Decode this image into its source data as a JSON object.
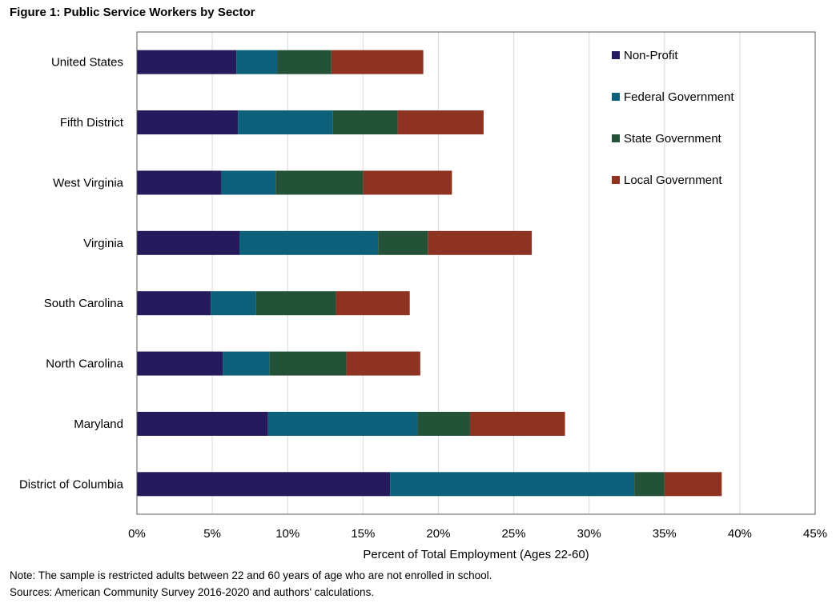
{
  "figure": {
    "title": "Figure 1: Public Service Workers by Sector",
    "note": "Note: The sample is restricted adults between 22 and 60  years of age who are not enrolled in school.",
    "sources": "Sources: American Community Survey 2016-2020 and authors' calculations."
  },
  "chart_data": {
    "type": "bar",
    "orientation": "horizontal",
    "stacked": true,
    "categories": [
      "United States",
      "Fifth District",
      "West Virginia",
      "Virginia",
      "South Carolina",
      "North Carolina",
      "Maryland",
      "District of Columbia"
    ],
    "series": [
      {
        "name": "Non-Profit",
        "color": "#241a5c",
        "values": [
          6.6,
          6.7,
          5.6,
          6.8,
          4.9,
          5.7,
          8.7,
          16.8
        ]
      },
      {
        "name": "Federal Government",
        "color": "#0d6079",
        "values": [
          2.7,
          6.3,
          3.6,
          9.2,
          3.0,
          3.1,
          9.9,
          16.2
        ]
      },
      {
        "name": "State Government",
        "color": "#235239",
        "values": [
          3.6,
          4.3,
          5.8,
          3.3,
          5.3,
          5.1,
          3.5,
          2.0
        ]
      },
      {
        "name": "Local Government",
        "color": "#8e3321",
        "values": [
          6.1,
          5.7,
          5.9,
          6.9,
          4.9,
          4.9,
          6.3,
          3.8
        ]
      }
    ],
    "xlabel": "Percent of Total Employment  (Ages 22-60)",
    "ylabel": "",
    "xlim": [
      0,
      45
    ],
    "xticks": [
      "0%",
      "5%",
      "10%",
      "15%",
      "20%",
      "25%",
      "30%",
      "35%",
      "40%",
      "45%"
    ],
    "grid": "vertical",
    "legend_position": "top-right"
  }
}
